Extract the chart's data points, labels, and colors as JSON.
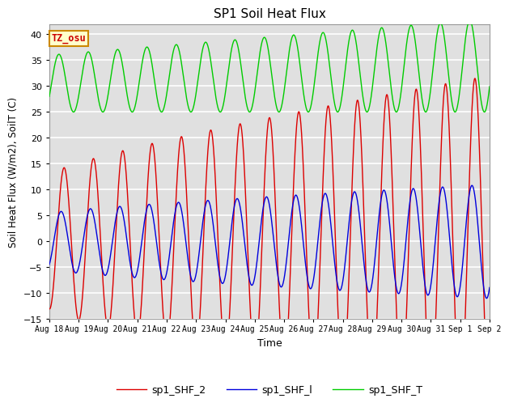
{
  "title": "SP1 Soil Heat Flux",
  "xlabel": "Time",
  "ylabel": "Soil Heat Flux (W/m2), SoilT (C)",
  "ylim": [
    -15,
    42
  ],
  "yticks": [
    -15,
    -10,
    -5,
    0,
    5,
    10,
    15,
    20,
    25,
    30,
    35,
    40
  ],
  "timezone_label": "TZ_osu",
  "legend_labels": [
    "sp1_SHF_2",
    "sp1_SHF_l",
    "sp1_SHF_T"
  ],
  "line_colors": [
    "#dd0000",
    "#0000dd",
    "#00cc00"
  ],
  "xtick_labels": [
    "Aug 18",
    "Aug 19",
    "Aug 20",
    "Aug 21",
    "Aug 22",
    "Aug 23",
    "Aug 24",
    "Aug 25",
    "Aug 26",
    "Aug 27",
    "Aug 28",
    "Aug 29",
    "Aug 30",
    "Aug 31",
    "Sep 1",
    "Sep 2"
  ],
  "background_color": "#ffffff",
  "plot_bg_color": "#e0e0e0",
  "grid_color": "#ffffff",
  "num_days": 15
}
